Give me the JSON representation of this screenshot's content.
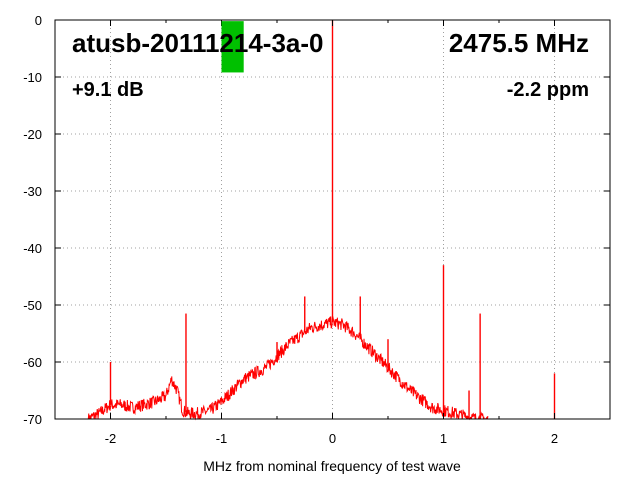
{
  "chart_data": {
    "type": "line",
    "title": "atusb-20111214-3a-0",
    "frequency_label": "2475.5 MHz",
    "gain_label": "+9.1 dB",
    "ppm_label": "-2.2 ppm",
    "xlabel": "MHz from nominal frequency of test wave",
    "ylabel": "",
    "xlim": [
      -2.5,
      2.5
    ],
    "ylim": [
      -70,
      0
    ],
    "x_ticks": [
      -2,
      -1,
      0,
      1,
      2
    ],
    "x_tick_labels": [
      "-2",
      "-1",
      "0",
      "1",
      "2"
    ],
    "y_ticks": [
      0,
      -10,
      -20,
      -30,
      -40,
      -50,
      -60,
      -70
    ],
    "y_tick_labels": [
      "0",
      "-10",
      "-20",
      "-30",
      "-40",
      "-50",
      "-60",
      "-70"
    ],
    "grid": true,
    "colors": {
      "series": "#ff0000",
      "marker": "#00c000",
      "grid": "#a0a0a0"
    },
    "series": [
      {
        "x": [
          -2.2,
          -2.1,
          -2.0,
          -1.9,
          -1.8,
          -1.7,
          -1.6,
          -1.5,
          -1.45,
          -1.4,
          -1.35,
          -1.3,
          -1.2,
          -1.1,
          -1.0,
          -0.9,
          -0.8,
          -0.7,
          -0.6,
          -0.5,
          -0.4,
          -0.3,
          -0.2,
          -0.1,
          0.0,
          0.1,
          0.2,
          0.3,
          0.4,
          0.5,
          0.6,
          0.7,
          0.8,
          0.9,
          1.0,
          1.1,
          1.2,
          1.3,
          1.4
        ],
        "values": [
          -70,
          -69,
          -67.5,
          -67.5,
          -68,
          -67.5,
          -67,
          -66,
          -63,
          -65,
          -68.5,
          -69,
          -69,
          -68.5,
          -67,
          -65,
          -63,
          -62,
          -61,
          -59,
          -57,
          -55.5,
          -54,
          -53.5,
          -53,
          -53.5,
          -55,
          -57,
          -59,
          -61,
          -63,
          -65,
          -66.5,
          -68,
          -68.5,
          -69,
          -69.5,
          -70,
          -70
        ]
      }
    ],
    "spikes": [
      {
        "x": -2.0,
        "y": -60
      },
      {
        "x": -1.32,
        "y": -51.5
      },
      {
        "x": -0.5,
        "y": -59.5
      },
      {
        "x": -0.5,
        "y": -56.5
      },
      {
        "x": -0.25,
        "y": -48.5
      },
      {
        "x": 0.0,
        "y": 0
      },
      {
        "x": 0.25,
        "y": -48.5
      },
      {
        "x": 0.5,
        "y": -56
      },
      {
        "x": 1.0,
        "y": -43
      },
      {
        "x": 1.23,
        "y": -65
      },
      {
        "x": 1.33,
        "y": -51.5
      },
      {
        "x": 2.0,
        "y": -62
      }
    ],
    "marker": {
      "x_start": -1.0,
      "x_end": -0.8,
      "y_top": -0.2,
      "y_bottom": -9.2
    }
  }
}
